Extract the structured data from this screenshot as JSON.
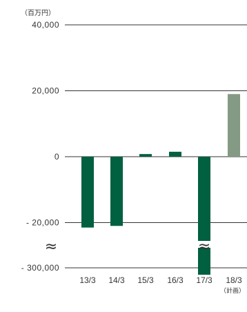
{
  "chart_data": {
    "type": "bar",
    "unit_label": "（百万円）",
    "categories": [
      "13/3",
      "14/3",
      "15/3",
      "16/3",
      "17/3",
      "18/3"
    ],
    "category_notes": [
      "",
      "",
      "",
      "",
      "",
      "（計画）"
    ],
    "values": [
      -21500,
      -21000,
      800,
      1500,
      -300000,
      19000
    ],
    "colors": [
      "#006040",
      "#006040",
      "#006040",
      "#006040",
      "#006040",
      "#849a84"
    ],
    "y_ticks": [
      "40,000",
      "20,000",
      "0",
      "- 20,000",
      "- 300,000"
    ],
    "ylim": [
      -300000,
      40000
    ],
    "axis_break": "≈",
    "grid": true
  }
}
